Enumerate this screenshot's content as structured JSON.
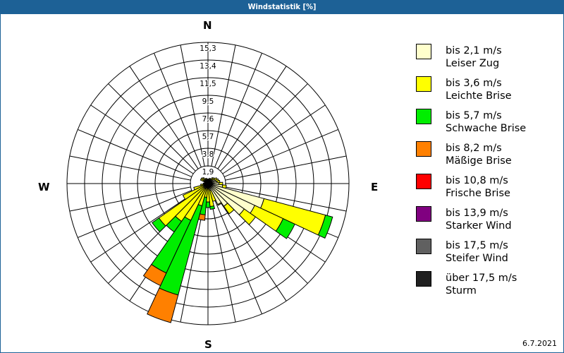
{
  "title": "Windstatistik [%]",
  "date": "6.7.2021",
  "compass": {
    "N": "N",
    "E": "E",
    "S": "S",
    "W": "W"
  },
  "legend": [
    {
      "line1": "bis 2,1 m/s",
      "line2": "Leiser Zug",
      "color": "#ffffcc"
    },
    {
      "line1": "bis 3,6 m/s",
      "line2": "Leichte Brise",
      "color": "#ffff00"
    },
    {
      "line1": "bis 5,7 m/s",
      "line2": "Schwache Brise",
      "color": "#00ee00"
    },
    {
      "line1": "bis 8,2 m/s",
      "line2": "Mäßige Brise",
      "color": "#ff8000"
    },
    {
      "line1": "bis 10,8 m/s",
      "line2": "Frische Brise",
      "color": "#ff0000"
    },
    {
      "line1": "bis 13,9 m/s",
      "line2": "Starker Wind",
      "color": "#800080"
    },
    {
      "line1": "bis 17,5 m/s",
      "line2": "Steifer Wind",
      "color": "#606060"
    },
    {
      "line1": "über 17,5 m/s",
      "line2": "Sturm",
      "color": "#202020"
    }
  ],
  "chart_data": {
    "type": "polar-bar (wind rose)",
    "title": "Windstatistik [%]",
    "radial_ticks": [
      "1,9",
      "3,8",
      "5,7",
      "7,6",
      "9,5",
      "11,5",
      "13,4",
      "15,3"
    ],
    "radial_max": 15.3,
    "direction_labels": [
      "N",
      "E",
      "S",
      "W"
    ],
    "sector_width_deg": 10,
    "series_names": [
      "bis 2,1 m/s",
      "bis 3,6 m/s",
      "bis 5,7 m/s",
      "bis 8,2 m/s",
      "bis 10,8 m/s",
      "bis 13,9 m/s",
      "bis 17,5 m/s",
      "über 17,5 m/s"
    ],
    "note": "cumulative radius in % per speed class, by direction (deg from N, clockwise)",
    "sectors": [
      {
        "dir": 0,
        "cum": [
          0.3,
          0.5
        ]
      },
      {
        "dir": 10,
        "cum": [
          0.3,
          0.5
        ]
      },
      {
        "dir": 20,
        "cum": [
          0.4,
          0.6
        ]
      },
      {
        "dir": 30,
        "cum": [
          0.4,
          0.6
        ]
      },
      {
        "dir": 40,
        "cum": [
          0.5,
          0.8
        ]
      },
      {
        "dir": 50,
        "cum": [
          0.6,
          0.9
        ]
      },
      {
        "dir": 60,
        "cum": [
          0.8,
          1.1
        ]
      },
      {
        "dir": 70,
        "cum": [
          0.9,
          1.2
        ]
      },
      {
        "dir": 80,
        "cum": [
          1.0,
          1.3
        ]
      },
      {
        "dir": 90,
        "cum": [
          1.2,
          1.6
        ]
      },
      {
        "dir": 100,
        "cum": [
          1.6,
          2.0
        ]
      },
      {
        "dir": 110,
        "cum": [
          6.3,
          13.2,
          14.0
        ]
      },
      {
        "dir": 120,
        "cum": [
          5.6,
          9.0,
          10.4
        ]
      },
      {
        "dir": 130,
        "cum": [
          4.8,
          6.3
        ]
      },
      {
        "dir": 140,
        "cum": [
          3.0,
          4.0
        ]
      },
      {
        "dir": 150,
        "cum": [
          2.5,
          2.6
        ]
      },
      {
        "dir": 160,
        "cum": [
          0.8,
          2.0
        ]
      },
      {
        "dir": 170,
        "cum": [
          0.6,
          2.5,
          2.8
        ]
      },
      {
        "dir": 180,
        "cum": [
          0.5,
          2.0,
          2.6
        ]
      },
      {
        "dir": 190,
        "cum": [
          0.4,
          1.5,
          3.4,
          4.0
        ]
      },
      {
        "dir": 200,
        "cum": [
          0.5,
          2.5,
          12.5,
          15.6
        ]
      },
      {
        "dir": 210,
        "cum": [
          0.6,
          4.4,
          10.7,
          12.2
        ]
      },
      {
        "dir": 220,
        "cum": [
          0.6,
          5.0,
          6.4
        ]
      },
      {
        "dir": 230,
        "cum": [
          0.6,
          6.5,
          7.4
        ]
      },
      {
        "dir": 240,
        "cum": [
          0.5,
          3.0
        ]
      },
      {
        "dir": 250,
        "cum": [
          0.4,
          1.6
        ]
      },
      {
        "dir": 260,
        "cum": [
          0.3,
          0.8
        ]
      },
      {
        "dir": 270,
        "cum": [
          0.3,
          0.5
        ]
      },
      {
        "dir": 280,
        "cum": [
          0.2,
          0.4
        ]
      },
      {
        "dir": 290,
        "cum": [
          0.2,
          0.4
        ]
      },
      {
        "dir": 300,
        "cum": [
          0.5,
          0.9
        ]
      },
      {
        "dir": 310,
        "cum": [
          0.5,
          0.9
        ]
      },
      {
        "dir": 320,
        "cum": [
          0.4,
          0.8
        ]
      },
      {
        "dir": 330,
        "cum": [
          0.3,
          0.6
        ]
      },
      {
        "dir": 340,
        "cum": [
          0.3,
          0.6
        ]
      },
      {
        "dir": 350,
        "cum": [
          0.3,
          0.5
        ]
      }
    ]
  }
}
